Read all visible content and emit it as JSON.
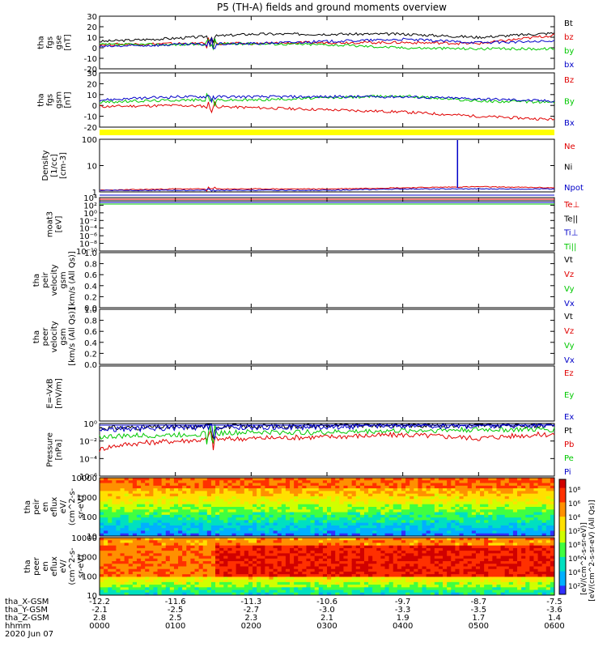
{
  "title": "P5 (TH-A) fields and ground moments overview",
  "colors": {
    "black": "#000000",
    "red": "#e00000",
    "green": "#00c800",
    "blue": "#0000c8",
    "yellow": "#ffff00"
  },
  "panels": [
    {
      "id": "fgs-gse",
      "ylabel": [
        "tha",
        "fgs",
        "gse",
        "[nT]"
      ],
      "yticks": [
        "30",
        "20",
        "10",
        "0",
        "-10",
        "-20"
      ],
      "legend": [
        "Bt",
        "bz",
        "by",
        "bx"
      ],
      "legend_colors": [
        "black",
        "red",
        "green",
        "blue"
      ]
    },
    {
      "id": "fgs-gsm",
      "ylabel": [
        "tha",
        "fgs",
        "gsm",
        "[nT]"
      ],
      "yticks": [
        "30",
        "20",
        "10",
        "0",
        "-10",
        "-20"
      ],
      "legend": [
        "Bz",
        "By",
        "Bx"
      ],
      "legend_colors": [
        "red",
        "green",
        "blue"
      ]
    },
    {
      "id": "density",
      "ylabel": [
        "Density",
        "[1/cc]",
        "[cm-3]"
      ],
      "yticks": [
        "100",
        "10",
        "1"
      ],
      "legend": [
        "Ne",
        "Ni",
        "Npot"
      ],
      "legend_colors": [
        "red",
        "black",
        "blue"
      ]
    },
    {
      "id": "temperature",
      "ylabel": [
        "moat3",
        "[eV]"
      ],
      "yticks": [
        "10⁴",
        "10²",
        "10⁰",
        "10⁻²",
        "10⁻⁴",
        "10⁻⁶",
        "10⁻⁸",
        "10⁻¹⁰"
      ],
      "legend": [
        "Te⊥",
        "Te||",
        "Ti⊥",
        "Ti||"
      ],
      "legend_colors": [
        "red",
        "black",
        "blue",
        "green"
      ]
    },
    {
      "id": "peir-velocity",
      "ylabel": [
        "tha",
        "peir",
        "velocity",
        "gsm",
        "[km/s (All Qs)]"
      ],
      "yticks": [
        "1.0",
        "0.8",
        "0.6",
        "0.4",
        "0.2",
        "0.0"
      ],
      "legend": [
        "Vt",
        "Vz",
        "Vy",
        "Vx"
      ],
      "legend_colors": [
        "black",
        "red",
        "green",
        "blue"
      ]
    },
    {
      "id": "peer-velocity",
      "ylabel": [
        "tha",
        "peer",
        "velocity",
        "gsm",
        "[km/s (All Qs)]"
      ],
      "yticks": [
        "1.0",
        "0.8",
        "0.6",
        "0.4",
        "0.2",
        "0.0"
      ],
      "legend": [
        "Vt",
        "Vz",
        "Vy",
        "Vx"
      ],
      "legend_colors": [
        "black",
        "red",
        "green",
        "blue"
      ]
    },
    {
      "id": "efield",
      "ylabel": [
        "E=-VxB",
        "[mV/m]"
      ],
      "yticks": [],
      "legend": [
        "Ez",
        "Ey",
        "Ex"
      ],
      "legend_colors": [
        "red",
        "green",
        "blue"
      ]
    },
    {
      "id": "pressure",
      "ylabel": [
        "Pressure",
        "[nPa]"
      ],
      "yticks": [
        "10⁰",
        "10⁻²",
        "10⁻⁴",
        "10⁻⁶"
      ],
      "legend": [
        "Pt",
        "Pb",
        "Pe",
        "Pi"
      ],
      "legend_colors": [
        "black",
        "red",
        "green",
        "blue"
      ]
    },
    {
      "id": "peir-eflux",
      "ylabel": [
        "tha",
        "peir",
        "en",
        "eflux",
        "eV/",
        "(cm^2-s-",
        "sr-eV)"
      ],
      "yticks": [
        "10000",
        "1000",
        "100",
        "10"
      ],
      "legend": [],
      "legend_colors": []
    },
    {
      "id": "peer-eflux",
      "ylabel": [
        "tha",
        "peer",
        "en",
        "eflux",
        "eV/",
        "(cm^2-s-",
        "sr-eV)"
      ],
      "yticks": [
        "10000",
        "1000",
        "100",
        "10"
      ],
      "legend": [],
      "legend_colors": []
    }
  ],
  "colorbar": {
    "ticks": [
      "10⁸",
      "10⁶",
      "10⁴",
      "10²",
      "10⁸",
      "10⁶",
      "10⁴",
      "10²"
    ],
    "label": "[eV/(cm^2-s-sr-eV)]",
    "label2": "[eV/(cm^2-s-sr-eV) (All Qs)]"
  },
  "xaxis": {
    "rows": [
      {
        "label": "tha_X-GSM",
        "values": [
          "-12.2",
          "-11.6",
          "-11.3",
          "-10.6",
          "-9.7",
          "-8.7",
          "-7.5"
        ]
      },
      {
        "label": "tha_Y-GSM",
        "values": [
          "-2.1",
          "-2.5",
          "-2.7",
          "-3.0",
          "-3.3",
          "-3.5",
          "-3.6"
        ]
      },
      {
        "label": "tha_Z-GSM",
        "values": [
          "2.8",
          "2.5",
          "2.3",
          "2.1",
          "1.9",
          "1.7",
          "1.4"
        ]
      },
      {
        "label": "hhmm",
        "values": [
          "0000",
          "0100",
          "0200",
          "0300",
          "0400",
          "0500",
          "0600"
        ]
      }
    ],
    "date": "2020 Jun 07"
  },
  "chart_data": {
    "type": "line",
    "title": "P5 (TH-A) fields and ground moments overview",
    "x": [
      "0000",
      "0100",
      "0200",
      "0300",
      "0400",
      "0500",
      "0600"
    ],
    "panels": [
      {
        "name": "tha fgs gse [nT]",
        "ylim": [
          -20,
          30
        ],
        "series": [
          {
            "name": "Bt",
            "values": [
              6,
              9,
              13,
              13,
              13,
              10,
              14
            ]
          },
          {
            "name": "bz",
            "values": [
              3,
              4,
              4,
              5,
              5,
              4,
              12
            ]
          },
          {
            "name": "by",
            "values": [
              3,
              3,
              4,
              3,
              0,
              -1,
              -1
            ]
          },
          {
            "name": "bx",
            "values": [
              1,
              3,
              4,
              6,
              8,
              5,
              6
            ]
          }
        ]
      },
      {
        "name": "tha fgs gsm [nT]",
        "ylim": [
          -20,
          30
        ],
        "series": [
          {
            "name": "Bz",
            "values": [
              -1,
              0,
              -2,
              -4,
              -6,
              -10,
              -13
            ]
          },
          {
            "name": "By",
            "values": [
              3,
              5,
              5,
              7,
              9,
              4,
              3
            ]
          },
          {
            "name": "Bx",
            "values": [
              5,
              8,
              8,
              8,
              8,
              6,
              4
            ]
          }
        ]
      },
      {
        "name": "Density [1/cc]",
        "ylim": [
          0.5,
          200
        ],
        "series": [
          {
            "name": "Ne",
            "values": [
              0.6,
              0.7,
              0.7,
              0.7,
              0.8,
              0.9,
              0.8
            ]
          },
          {
            "name": "Npot",
            "values": [
              0.6,
              0.6,
              0.6,
              0.6,
              0.7,
              0.7,
              0.7
            ]
          }
        ]
      },
      {
        "name": "Pressure [nPa]",
        "ylim": [
          1e-06,
          1
        ],
        "series": [
          {
            "name": "Pt",
            "values": [
              0.3,
              0.4,
              0.5,
              0.6,
              0.7,
              0.6,
              0.7
            ]
          },
          {
            "name": "Pb",
            "values": [
              0.001,
              0.01,
              0.02,
              0.03,
              0.05,
              0.02,
              0.06
            ]
          },
          {
            "name": "Pe",
            "values": [
              0.03,
              0.05,
              0.1,
              0.1,
              0.15,
              0.2,
              0.2
            ]
          },
          {
            "name": "Pi",
            "values": [
              0.2,
              0.3,
              0.35,
              0.4,
              0.5,
              0.5,
              0.6
            ]
          }
        ]
      }
    ]
  }
}
